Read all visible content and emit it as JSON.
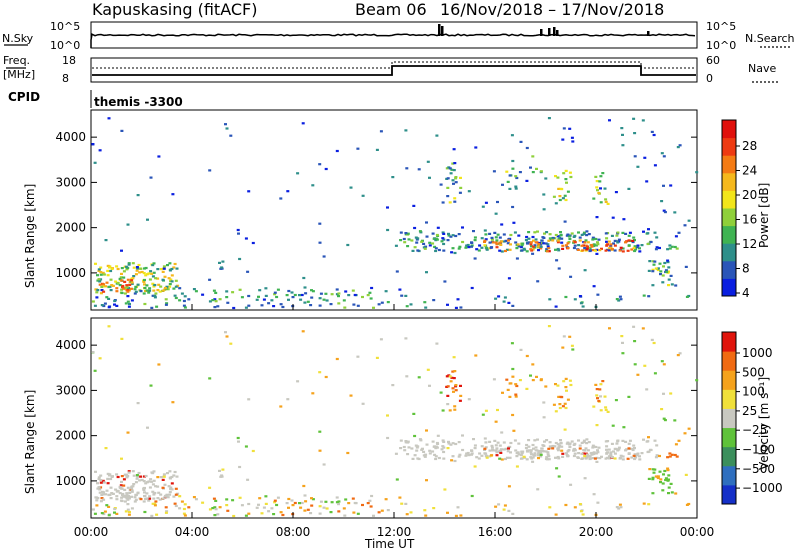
{
  "header": {
    "station": "Kapuskasing (fitACF)",
    "beam": "Beam 06",
    "dates": "16/Nov/2018 – 17/Nov/2018"
  },
  "strips": {
    "nsky_label": "N.Sky",
    "nsky_ticks": [
      "10^5",
      "10^0"
    ],
    "nsky_right_ticks": [
      "10^5",
      "10^0"
    ],
    "nsearch_label": "N.Search",
    "freq_label_1": "Freq.",
    "freq_label_2": "[MHz]",
    "freq_ticks": [
      "18",
      "8"
    ],
    "nave_ticks": [
      "60",
      "0"
    ],
    "nave_label": "Nave",
    "cpid_label": "CPID",
    "cpid_value": "themis -3300"
  },
  "chart_data": [
    {
      "type": "heatmap",
      "name": "power-panel",
      "ylabel": "Slant Range [km]",
      "yticks": [
        "4000",
        "3000",
        "2000",
        "1000"
      ],
      "ylim": [
        180,
        4600
      ],
      "xlim": [
        0,
        24
      ],
      "colorbar": {
        "label": "Power [dB]",
        "ticks": [
          "28",
          "24",
          "20",
          "16",
          "12",
          "8",
          "4"
        ],
        "colors": [
          "#0a1fe0",
          "#2a55b8",
          "#2e8f8a",
          "#3fb352",
          "#8fd03a",
          "#f2e51a",
          "#f5b81c",
          "#f47b14",
          "#ee3a12",
          "#e0100c"
        ]
      },
      "echo_regions": [
        {
          "t0": 0.1,
          "t1": 3.5,
          "r0": 500,
          "r1": 1200,
          "level": "moderate"
        },
        {
          "t0": 0.0,
          "t1": 12.0,
          "r0": 180,
          "r1": 600,
          "level": "weak"
        },
        {
          "t0": 12.0,
          "t1": 22.5,
          "r0": 1400,
          "r1": 2000,
          "level": "strong"
        },
        {
          "t0": 14.0,
          "t1": 21.5,
          "r0": 2400,
          "r1": 3500,
          "level": "moderate"
        },
        {
          "t0": 22.0,
          "t1": 23.0,
          "r0": 700,
          "r1": 1300,
          "level": "moderate"
        }
      ]
    },
    {
      "type": "heatmap",
      "name": "velocity-panel",
      "ylabel": "Slant Range [km]",
      "yticks": [
        "4000",
        "3000",
        "2000",
        "1000"
      ],
      "ylim": [
        180,
        4600
      ],
      "xlabel": "Time UT",
      "xticks": [
        "00:00",
        "04:00",
        "08:00",
        "12:00",
        "16:00",
        "20:00",
        "00:00"
      ],
      "xlim": [
        0,
        24
      ],
      "colorbar": {
        "label": "Velocity [m s⁻¹]",
        "ticks": [
          "1000",
          "500",
          "100",
          "25",
          "−25",
          "−100",
          "−500",
          "−1000"
        ],
        "colors": [
          "#1530c8",
          "#2f6fbf",
          "#3b8f5c",
          "#5fc23a",
          "#c8c8c0",
          "#f0e03a",
          "#f5a21c",
          "#f06a12",
          "#e0140c"
        ]
      }
    }
  ]
}
